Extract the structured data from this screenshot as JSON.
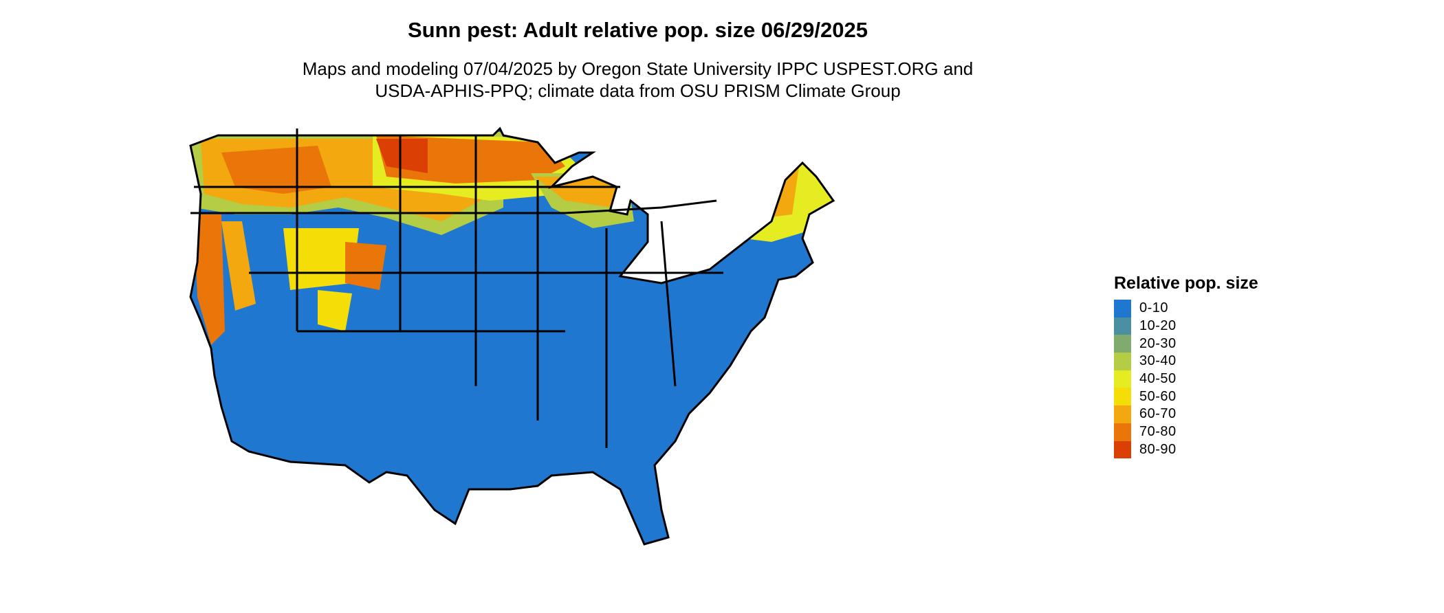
{
  "header": {
    "title": "Sunn pest: Adult relative pop. size 06/29/2025",
    "subtitle_line1": "Maps and modeling 07/04/2025 by Oregon State University IPPC USPEST.ORG and",
    "subtitle_line2": "USDA-APHIS-PPQ; climate data from OSU PRISM Climate Group"
  },
  "legend": {
    "title": "Relative pop. size",
    "items": [
      {
        "label": "0-10",
        "color": "#1f77d0"
      },
      {
        "label": "10-20",
        "color": "#4a8fa2"
      },
      {
        "label": "20-30",
        "color": "#7fab6e"
      },
      {
        "label": "30-40",
        "color": "#b5cc45"
      },
      {
        "label": "40-50",
        "color": "#e6ec22"
      },
      {
        "label": "50-60",
        "color": "#f5de08"
      },
      {
        "label": "60-70",
        "color": "#f2a80e"
      },
      {
        "label": "70-80",
        "color": "#ea7508"
      },
      {
        "label": "80-90",
        "color": "#db3f04"
      }
    ]
  },
  "map": {
    "region": "Contiguous United States",
    "state_borders": true
  }
}
